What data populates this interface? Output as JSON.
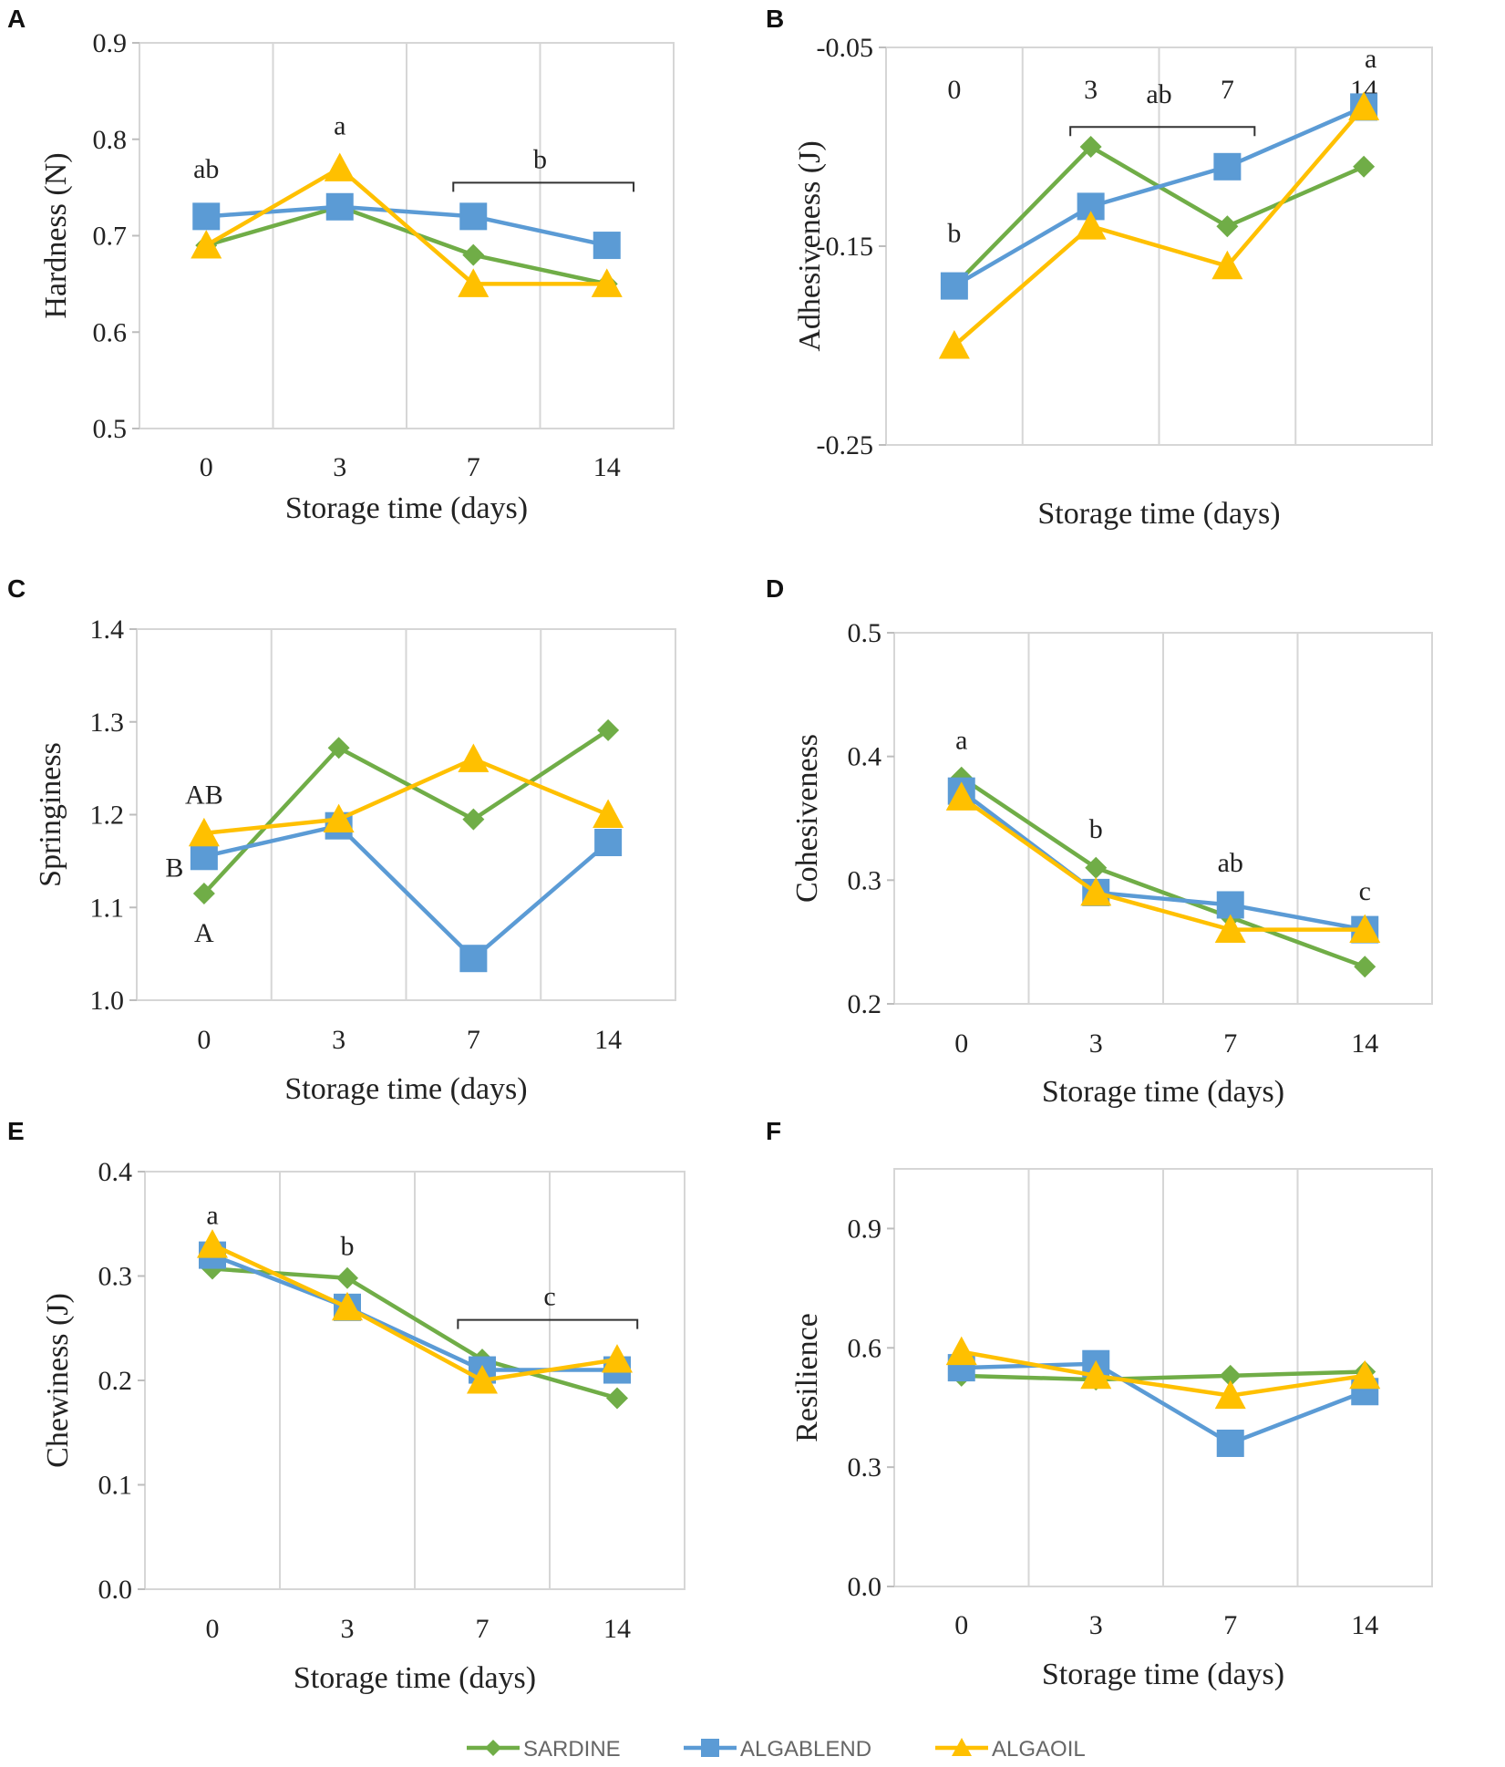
{
  "series_styles": [
    {
      "name": "SARDINE",
      "color": "#70AD47",
      "marker": "diamond"
    },
    {
      "name": "ALGABLEND",
      "color": "#5B9BD5",
      "marker": "square"
    },
    {
      "name": "ALGAOIL",
      "color": "#FFC000",
      "marker": "triangle"
    }
  ],
  "chart_data": [
    {
      "panel": "A",
      "type": "line",
      "categories": [
        "0",
        "3",
        "7",
        "14"
      ],
      "xlabel": "Storage time (days)",
      "ylabel": "Hardness (N)",
      "ylim": [
        0.5,
        0.9
      ],
      "yticks": [
        "0.5",
        "0.6",
        "0.7",
        "0.8",
        "0.9"
      ],
      "series": [
        {
          "name": "SARDINE",
          "values": [
            0.69,
            0.73,
            0.68,
            0.65
          ]
        },
        {
          "name": "ALGABLEND",
          "values": [
            0.72,
            0.73,
            0.72,
            0.69
          ]
        },
        {
          "name": "ALGAOIL",
          "values": [
            0.69,
            0.77,
            0.65,
            0.65
          ]
        }
      ],
      "annotations": [
        {
          "text": "ab",
          "x": 0,
          "y": 0.76
        },
        {
          "text": "a",
          "x": 1,
          "y": 0.805
        },
        {
          "text": "b",
          "x": 2.5,
          "y": 0.77
        }
      ],
      "brackets": [
        {
          "x1": 1.85,
          "x2": 3.2,
          "y": 0.755
        }
      ]
    },
    {
      "panel": "B",
      "type": "line",
      "categories": [
        "0",
        "3",
        "7",
        "14"
      ],
      "xlabel": "Storage time (days)",
      "ylabel": "Adhesiveness (J)",
      "ylim": [
        -0.25,
        -0.05
      ],
      "yticks": [
        "-0.25",
        "-0.15",
        "-0.05"
      ],
      "ytick_values": [
        -0.25,
        -0.15,
        -0.05
      ],
      "category_labels_top": true,
      "series": [
        {
          "name": "SARDINE",
          "values": [
            -0.17,
            -0.1,
            -0.14,
            -0.11
          ]
        },
        {
          "name": "ALGABLEND",
          "values": [
            -0.17,
            -0.13,
            -0.11,
            -0.08
          ]
        },
        {
          "name": "ALGAOIL",
          "values": [
            -0.2,
            -0.14,
            -0.16,
            -0.08
          ]
        }
      ],
      "annotations": [
        {
          "text": "b",
          "x": 0,
          "y": -0.148
        },
        {
          "text": "ab",
          "x": 1.5,
          "y": -0.078
        },
        {
          "text": "a",
          "x": 3.05,
          "y": -0.06
        }
      ],
      "brackets": [
        {
          "x1": 0.85,
          "x2": 2.2,
          "y": -0.09
        }
      ]
    },
    {
      "panel": "C",
      "type": "line",
      "categories": [
        "0",
        "3",
        "7",
        "14"
      ],
      "xlabel": "Storage time (days)",
      "ylabel": "Springiness",
      "ylim": [
        1.0,
        1.4
      ],
      "yticks": [
        "1.0",
        "1.1",
        "1.2",
        "1.3",
        "1.4"
      ],
      "series": [
        {
          "name": "SARDINE",
          "values": [
            1.115,
            1.272,
            1.195,
            1.291
          ]
        },
        {
          "name": "ALGABLEND",
          "values": [
            1.155,
            1.188,
            1.045,
            1.17
          ]
        },
        {
          "name": "ALGAOIL",
          "values": [
            1.18,
            1.195,
            1.26,
            1.2
          ]
        }
      ],
      "annotations": [
        {
          "text": "AB",
          "x": 0,
          "y": 1.212
        },
        {
          "text": "B",
          "x": -0.22,
          "y": 1.133
        },
        {
          "text": "A",
          "x": 0,
          "y": 1.063
        }
      ],
      "brackets": []
    },
    {
      "panel": "D",
      "type": "line",
      "categories": [
        "0",
        "3",
        "7",
        "14"
      ],
      "xlabel": "Storage time (days)",
      "ylabel": "Cohesiveness",
      "ylim": [
        0.2,
        0.5
      ],
      "yticks": [
        "0.2",
        "0.3",
        "0.4",
        "0.5"
      ],
      "series": [
        {
          "name": "SARDINE",
          "values": [
            0.383,
            0.31,
            0.27,
            0.23
          ]
        },
        {
          "name": "ALGABLEND",
          "values": [
            0.372,
            0.29,
            0.28,
            0.26
          ]
        },
        {
          "name": "ALGAOIL",
          "values": [
            0.367,
            0.29,
            0.26,
            0.26
          ]
        }
      ],
      "annotations": [
        {
          "text": "a",
          "x": 0,
          "y": 0.406
        },
        {
          "text": "b",
          "x": 1,
          "y": 0.334
        },
        {
          "text": "ab",
          "x": 2,
          "y": 0.307
        },
        {
          "text": "c",
          "x": 3,
          "y": 0.284
        }
      ],
      "brackets": []
    },
    {
      "panel": "E",
      "type": "line",
      "categories": [
        "0",
        "3",
        "7",
        "14"
      ],
      "xlabel": "Storage time (days)",
      "ylabel": "Chewiness (J)",
      "ylim": [
        0.0,
        0.4
      ],
      "yticks": [
        "0.0",
        "0.1",
        "0.2",
        "0.3",
        "0.4"
      ],
      "series": [
        {
          "name": "SARDINE",
          "values": [
            0.307,
            0.298,
            0.22,
            0.183
          ]
        },
        {
          "name": "ALGABLEND",
          "values": [
            0.32,
            0.27,
            0.21,
            0.21
          ]
        },
        {
          "name": "ALGAOIL",
          "values": [
            0.33,
            0.27,
            0.2,
            0.22
          ]
        }
      ],
      "annotations": [
        {
          "text": "a",
          "x": 0,
          "y": 0.35
        },
        {
          "text": "b",
          "x": 1,
          "y": 0.32
        },
        {
          "text": "c",
          "x": 2.5,
          "y": 0.272
        }
      ],
      "brackets": [
        {
          "x1": 1.82,
          "x2": 3.15,
          "y": 0.258
        }
      ]
    },
    {
      "panel": "F",
      "type": "line",
      "categories": [
        "0",
        "3",
        "7",
        "14"
      ],
      "xlabel": "Storage time (days)",
      "ylabel": "Resilience",
      "ylim": [
        0.0,
        1.05
      ],
      "yticks": [
        "0.0",
        "0.3",
        "0.6",
        "0.9"
      ],
      "ytick_values": [
        0.0,
        0.3,
        0.6,
        0.9
      ],
      "series": [
        {
          "name": "SARDINE",
          "values": [
            0.53,
            0.52,
            0.53,
            0.54
          ]
        },
        {
          "name": "ALGABLEND",
          "values": [
            0.55,
            0.56,
            0.36,
            0.49
          ]
        },
        {
          "name": "ALGAOIL",
          "values": [
            0.59,
            0.53,
            0.48,
            0.53
          ]
        }
      ],
      "annotations": [],
      "brackets": []
    }
  ]
}
